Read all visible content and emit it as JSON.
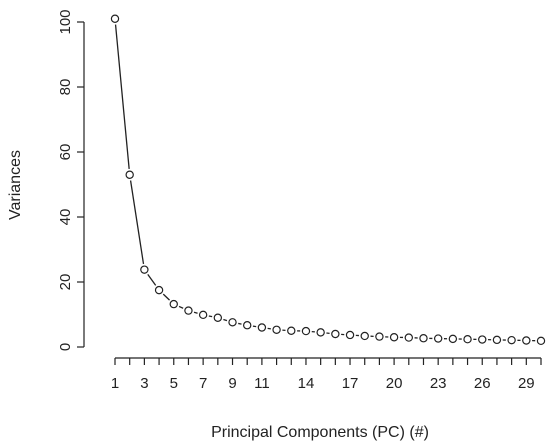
{
  "chart_data": {
    "type": "line",
    "title": "",
    "xlabel": "Principal Components (PC) (#)",
    "ylabel": "Variances",
    "x": [
      1,
      2,
      3,
      4,
      5,
      6,
      7,
      8,
      9,
      10,
      11,
      12,
      13,
      14,
      15,
      16,
      17,
      18,
      19,
      20,
      21,
      22,
      23,
      24,
      25,
      26,
      27,
      28,
      29,
      30
    ],
    "values": [
      101,
      53,
      23.8,
      17.5,
      13.2,
      11.2,
      9.9,
      9.0,
      7.6,
      6.7,
      6.0,
      5.3,
      5.0,
      4.9,
      4.5,
      4.0,
      3.7,
      3.4,
      3.2,
      3.0,
      2.9,
      2.7,
      2.6,
      2.5,
      2.4,
      2.3,
      2.2,
      2.1,
      2.0,
      1.9
    ],
    "xlim": [
      1,
      30
    ],
    "ylim": [
      0,
      100
    ],
    "x_tick_labels": [
      "1",
      "3",
      "5",
      "7",
      "9",
      "11",
      "14",
      "17",
      "20",
      "23",
      "26",
      "29"
    ],
    "y_tick_labels": [
      "0",
      "20",
      "40",
      "60",
      "80",
      "100"
    ],
    "y_ticks": [
      0,
      20,
      40,
      60,
      80,
      100
    ],
    "grid": false,
    "marker": "open-circle",
    "line_type": "line-with-gaps-at-points"
  }
}
